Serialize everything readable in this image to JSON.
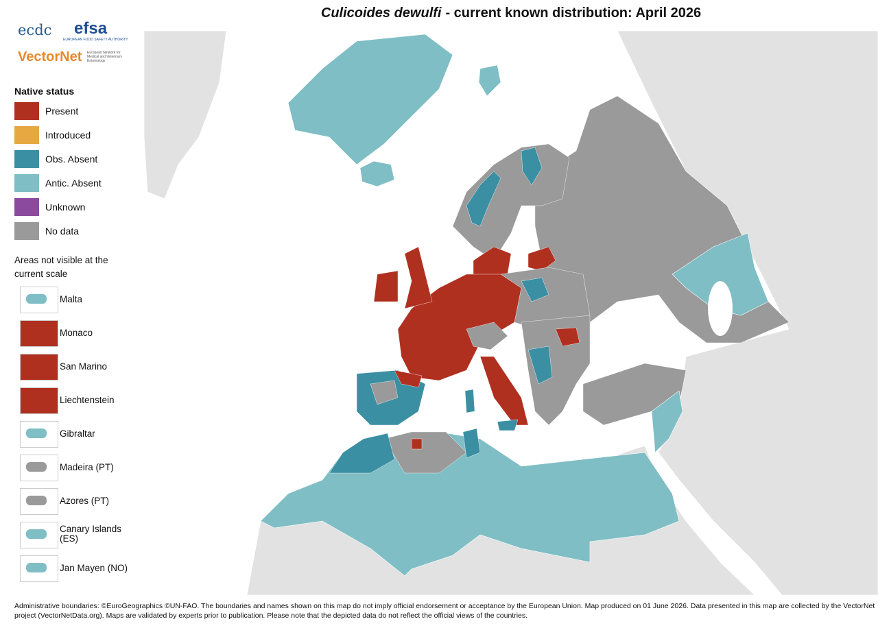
{
  "logos": {
    "ecdc": "ecdc",
    "efsa": "efsa",
    "efsa_subtitle": "EUROPEAN FOOD SAFETY AUTHORITY",
    "vectornet": "VectorNet",
    "vectornet_subtitle": "European Network for Medical and Veterinary Entomology"
  },
  "title": {
    "species": "Culicoides dewulfi",
    "text": "- current known distribution: April 2026"
  },
  "legend": {
    "title": "Native status",
    "items": [
      {
        "label": "Present",
        "color": "#b03020"
      },
      {
        "label": "Introduced",
        "color": "#e7a842"
      },
      {
        "label": "Obs. Absent",
        "color": "#3b8fa3"
      },
      {
        "label": "Antic. Absent",
        "color": "#7fbec5"
      },
      {
        "label": "Unknown",
        "color": "#8b4a9e"
      },
      {
        "label": "No data",
        "color": "#9a9a9a"
      }
    ]
  },
  "insets": {
    "title": "Areas not visible at the current scale",
    "items": [
      "Malta",
      "Monaco",
      "San Marino",
      "Liechtenstein",
      "Gibraltar",
      "Madeira (PT)",
      "Azores (PT)",
      "Canary Islands (ES)",
      "Jan Mayen (NO)"
    ]
  },
  "footer": "Administrative boundaries: ©EuroGeographics ©UN-FAO. The boundaries and names shown on this map do not imply official endorsement or acceptance by the European Union. Map produced on 01 June 2026. Data presented in this map are collected by the VectorNet project (VectorNetData.org). Maps are validated by experts prior to publication. Please note that the depicted data do not reflect the official views of the countries."
}
